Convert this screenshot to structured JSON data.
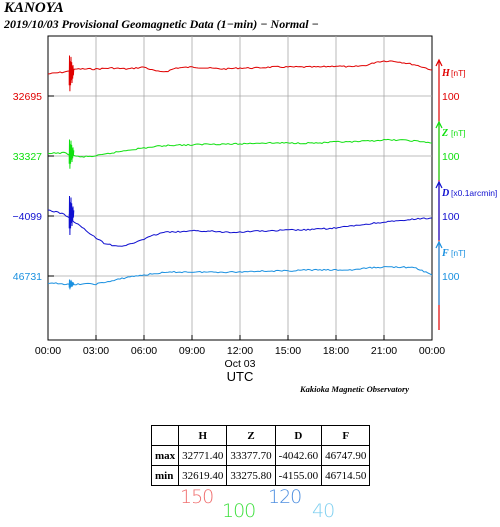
{
  "header": {
    "station": "KANOYA",
    "subtitle": "2019/10/03  Provisional Geomagnetic Data (1−min)  − Normal −"
  },
  "chart_data": {
    "type": "line",
    "x_ticks": [
      "00:00",
      "03:00",
      "06:00",
      "09:00",
      "12:00",
      "15:00",
      "18:00",
      "21:00",
      "00:00"
    ],
    "x_date_label": "Oct 03",
    "xlabel": "UTC",
    "x_range_hours": [
      0,
      24
    ],
    "grid": true,
    "series": [
      {
        "name": "H",
        "unit": "[nT]",
        "color": "#e00000",
        "baseline_label": "32695",
        "scale_label": "100",
        "points": [
          [
            0.0,
            74
          ],
          [
            0.5,
            73
          ],
          [
            1.0,
            72
          ],
          [
            1.4,
            71
          ],
          [
            1.8,
            69
          ],
          [
            3,
            69
          ],
          [
            4,
            68
          ],
          [
            5,
            69
          ],
          [
            6,
            67
          ],
          [
            6.5,
            70
          ],
          [
            7,
            72
          ],
          [
            7.5,
            71
          ],
          [
            8,
            68
          ],
          [
            9,
            67
          ],
          [
            10,
            68
          ],
          [
            11,
            69
          ],
          [
            12,
            68
          ],
          [
            13,
            68
          ],
          [
            14,
            67
          ],
          [
            15,
            67
          ],
          [
            16,
            67
          ],
          [
            17,
            67
          ],
          [
            18,
            66
          ],
          [
            19,
            67
          ],
          [
            20,
            65
          ],
          [
            20.5,
            62
          ],
          [
            21,
            61
          ],
          [
            21.5,
            61
          ],
          [
            22,
            62
          ],
          [
            23,
            65
          ],
          [
            24,
            70
          ]
        ]
      },
      {
        "name": "Z",
        "unit": "[nT]",
        "color": "#10e010",
        "baseline_label": "33327",
        "scale_label": "100",
        "points": [
          [
            0.0,
            154
          ],
          [
            0.5,
            153
          ],
          [
            1.0,
            153
          ],
          [
            1.5,
            155
          ],
          [
            2,
            157
          ],
          [
            3,
            156
          ],
          [
            4,
            153
          ],
          [
            5,
            150
          ],
          [
            6,
            148
          ],
          [
            7,
            146
          ],
          [
            8,
            145
          ],
          [
            9,
            145
          ],
          [
            10,
            144
          ],
          [
            11,
            144
          ],
          [
            12,
            144
          ],
          [
            13,
            143
          ],
          [
            14,
            143
          ],
          [
            15,
            143
          ],
          [
            16,
            143
          ],
          [
            17,
            143
          ],
          [
            18,
            142
          ],
          [
            19,
            142
          ],
          [
            20,
            141
          ],
          [
            21,
            140
          ],
          [
            22,
            140
          ],
          [
            23,
            141
          ],
          [
            24,
            143
          ]
        ]
      },
      {
        "name": "D",
        "unit": "[x0.1arcmin]",
        "color": "#1010d0",
        "baseline_label": "−4099",
        "scale_label": "100",
        "points": [
          [
            0.0,
            210
          ],
          [
            0.5,
            212
          ],
          [
            1.0,
            214
          ],
          [
            1.5,
            220
          ],
          [
            2,
            226
          ],
          [
            2.5,
            232
          ],
          [
            3,
            238
          ],
          [
            3.5,
            243
          ],
          [
            4,
            245
          ],
          [
            4.5,
            246
          ],
          [
            5,
            245
          ],
          [
            5.5,
            242
          ],
          [
            6,
            239
          ],
          [
            6.5,
            236
          ],
          [
            7,
            233
          ],
          [
            7.5,
            232
          ],
          [
            8,
            232
          ],
          [
            9,
            231
          ],
          [
            10,
            231
          ],
          [
            11,
            232
          ],
          [
            12,
            232
          ],
          [
            13,
            231
          ],
          [
            14,
            231
          ],
          [
            15,
            230
          ],
          [
            16,
            230
          ],
          [
            17,
            229
          ],
          [
            18,
            228
          ],
          [
            19,
            226
          ],
          [
            20,
            224
          ],
          [
            21,
            222
          ],
          [
            22,
            221
          ],
          [
            23,
            219
          ],
          [
            24,
            218
          ]
        ]
      },
      {
        "name": "F",
        "unit": "[nT]",
        "color": "#1a90e0",
        "baseline_label": "46731",
        "scale_label": "100",
        "points": [
          [
            0.0,
            284
          ],
          [
            0.5,
            283
          ],
          [
            1.0,
            284
          ],
          [
            1.5,
            285
          ],
          [
            2,
            284
          ],
          [
            3,
            284
          ],
          [
            4,
            281
          ],
          [
            5,
            277
          ],
          [
            6,
            275
          ],
          [
            7,
            273
          ],
          [
            8,
            272
          ],
          [
            9,
            272
          ],
          [
            10,
            272
          ],
          [
            11,
            272
          ],
          [
            12,
            272
          ],
          [
            13,
            271
          ],
          [
            14,
            271
          ],
          [
            15,
            271
          ],
          [
            16,
            270
          ],
          [
            17,
            270
          ],
          [
            18,
            270
          ],
          [
            19,
            270
          ],
          [
            20,
            268
          ],
          [
            21,
            267
          ],
          [
            22,
            267
          ],
          [
            23,
            268
          ],
          [
            24,
            275
          ]
        ]
      }
    ]
  },
  "credit": "Kakioka Magnetic Observatory",
  "stats": {
    "headers": [
      "H",
      "Z",
      "D",
      "F"
    ],
    "rows": [
      {
        "label": "max",
        "values": [
          "32771.40",
          "33377.70",
          "-4042.60",
          "46747.90"
        ]
      },
      {
        "label": "min",
        "values": [
          "32619.40",
          "33275.80",
          "-4155.00",
          "46714.50"
        ]
      }
    ]
  },
  "scales": [
    {
      "text": "150",
      "color": "#f07070"
    },
    {
      "text": "100",
      "color": "#40e040"
    },
    {
      "text": "120",
      "color": "#5090e0"
    },
    {
      "text": "40",
      "color": "#80d0f0"
    }
  ]
}
